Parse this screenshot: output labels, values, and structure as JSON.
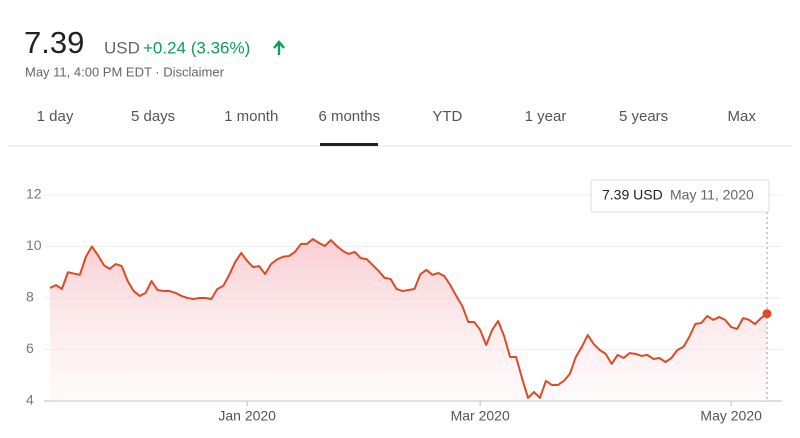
{
  "header": {
    "price": "7.39",
    "currency": "USD",
    "change": "+0.24 (3.36%)",
    "timestamp": "May 11, 4:00 PM EDT · Disclaimer"
  },
  "tabs": [
    "1 day",
    "5 days",
    "1 month",
    "6 months",
    "YTD",
    "1 year",
    "5 years",
    "Max"
  ],
  "tooltip": {
    "value": "7.39 USD",
    "date": "May 11, 2020"
  },
  "chart_data": {
    "type": "line",
    "color": "#dd4b26",
    "categories": [
      null,
      null,
      null,
      null,
      null,
      null,
      null,
      null,
      null,
      null,
      null,
      null,
      null,
      null,
      null,
      null,
      null,
      null,
      null,
      null,
      null,
      null,
      null,
      null,
      null,
      null,
      null,
      null,
      null,
      null,
      null,
      null,
      null,
      "Jan 2020",
      null,
      null,
      null,
      null,
      null,
      null,
      null,
      null,
      null,
      null,
      null,
      null,
      null,
      null,
      null,
      null,
      null,
      null,
      null,
      null,
      null,
      null,
      null,
      null,
      null,
      null,
      null,
      null,
      null,
      null,
      null,
      null,
      null,
      null,
      null,
      null,
      null,
      null,
      "Mar 2020",
      null,
      null,
      null,
      null,
      null,
      null,
      null,
      null,
      null,
      null,
      null,
      null,
      null,
      null,
      null,
      null,
      null,
      null,
      null,
      null,
      null,
      null,
      null,
      null,
      null,
      null,
      null,
      null,
      null,
      null,
      null,
      null,
      null,
      null,
      null,
      null,
      null,
      null,
      null,
      null,
      null,
      "May 2020",
      null,
      null,
      null,
      null,
      null,
      null
    ],
    "values": [
      8.39,
      8.5,
      8.35,
      9.0,
      8.95,
      8.9,
      9.6,
      10.0,
      9.67,
      9.28,
      9.13,
      9.32,
      9.24,
      8.66,
      8.27,
      8.08,
      8.2,
      8.66,
      8.31,
      8.27,
      8.27,
      8.2,
      8.08,
      8.0,
      7.96,
      8.0,
      8.0,
      7.96,
      8.35,
      8.47,
      8.9,
      9.4,
      9.75,
      9.44,
      9.2,
      9.24,
      8.93,
      9.32,
      9.5,
      9.6,
      9.63,
      9.79,
      10.1,
      10.1,
      10.29,
      10.14,
      10.02,
      10.25,
      10.02,
      9.83,
      9.71,
      9.79,
      9.55,
      9.51,
      9.28,
      9.05,
      8.78,
      8.74,
      8.35,
      8.27,
      8.31,
      8.35,
      8.93,
      9.09,
      8.9,
      8.97,
      8.85,
      8.5,
      8.08,
      7.69,
      7.07,
      7.07,
      6.76,
      6.17,
      6.76,
      7.11,
      6.52,
      5.71,
      5.71,
      4.89,
      4.12,
      4.35,
      4.12,
      4.78,
      4.62,
      4.62,
      4.78,
      5.05,
      5.71,
      6.1,
      6.56,
      6.21,
      5.98,
      5.83,
      5.44,
      5.79,
      5.67,
      5.86,
      5.83,
      5.75,
      5.79,
      5.63,
      5.67,
      5.51,
      5.67,
      5.98,
      6.1,
      6.49,
      6.99,
      7.03,
      7.3,
      7.15,
      7.26,
      7.15,
      6.87,
      6.8,
      7.22,
      7.15,
      6.99,
      7.22,
      7.39
    ],
    "ylim": [
      4,
      12
    ],
    "yticks": [
      4,
      6,
      8,
      10,
      12
    ],
    "grid": true
  }
}
